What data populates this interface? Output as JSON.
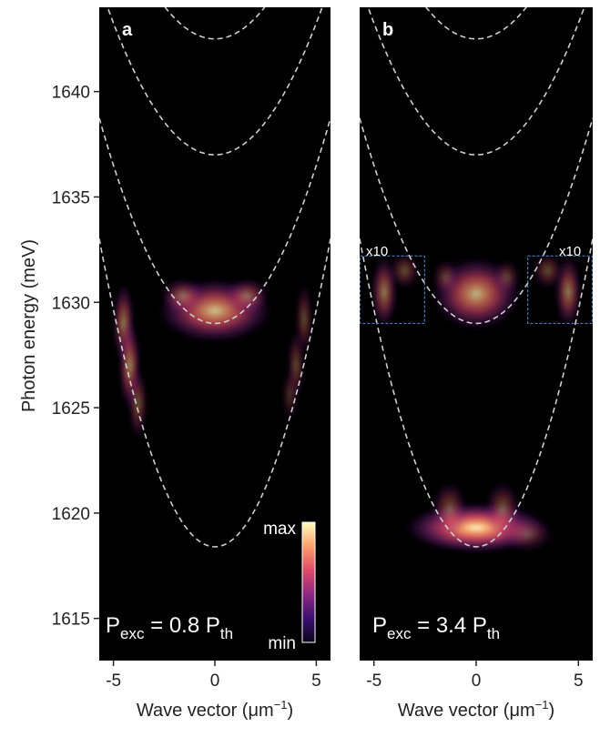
{
  "chart_data": {
    "type": "heatmap",
    "ylabel": "Photon energy (meV)",
    "ylim": [
      1613,
      1644
    ],
    "xlim": [
      -5.7,
      5.7
    ],
    "yticks": [
      1615,
      1620,
      1625,
      1630,
      1635,
      1640
    ],
    "xticks": [
      -5,
      0,
      5
    ],
    "colormap": [
      "#0a0418",
      "#3b0f70",
      "#8c2981",
      "#de4968",
      "#fe9f6d",
      "#fcfdbf"
    ],
    "colorbar": {
      "max_label": "max",
      "min_label": "min"
    },
    "panels": [
      {
        "letter": "a",
        "xlabel": "Wave vector (μm",
        "xlabel_sup": "−1",
        "xlabel_close": ")",
        "annotation": {
          "p": "P",
          "exc": "exc",
          "eq": " = 0.8 P",
          "th": "th"
        },
        "dashed_parabolas": [
          {
            "e0": 1618.4,
            "curv": 0.45
          },
          {
            "e0": 1629.0,
            "curv": 0.3
          },
          {
            "e0": 1637.0,
            "curv": 0.25
          },
          {
            "e0": 1642.5,
            "curv": 0.25
          }
        ],
        "emission_blobs": [
          {
            "k": 0.0,
            "e": 1629.6,
            "sk": 1.3,
            "se": 0.7,
            "i": 0.8
          },
          {
            "k": -1.6,
            "e": 1630.3,
            "sk": 0.5,
            "se": 0.4,
            "i": 0.45
          },
          {
            "k": 1.6,
            "e": 1630.3,
            "sk": 0.5,
            "se": 0.4,
            "i": 0.45
          },
          {
            "k": -4.5,
            "e": 1629.0,
            "sk": 0.25,
            "se": 0.9,
            "i": 0.55
          },
          {
            "k": -4.2,
            "e": 1627.0,
            "sk": 0.25,
            "se": 1.0,
            "i": 0.6
          },
          {
            "k": -3.8,
            "e": 1625.2,
            "sk": 0.22,
            "se": 0.8,
            "i": 0.4
          },
          {
            "k": 4.4,
            "e": 1629.2,
            "sk": 0.2,
            "se": 0.8,
            "i": 0.35
          },
          {
            "k": 4.0,
            "e": 1627.0,
            "sk": 0.2,
            "se": 0.8,
            "i": 0.35
          },
          {
            "k": 3.7,
            "e": 1625.6,
            "sk": 0.18,
            "se": 0.6,
            "i": 0.25
          }
        ]
      },
      {
        "letter": "b",
        "xlabel": "Wave vector (μm",
        "xlabel_sup": "−1",
        "xlabel_close": ")",
        "annotation": {
          "p": "P",
          "exc": "exc",
          "eq": " = 3.4 P",
          "th": "th"
        },
        "x10_label": "x10",
        "dashed_parabolas": [
          {
            "e0": 1618.4,
            "curv": 0.45
          },
          {
            "e0": 1629.0,
            "curv": 0.3
          },
          {
            "e0": 1637.0,
            "curv": 0.25
          },
          {
            "e0": 1642.5,
            "curv": 0.25
          }
        ],
        "inset_boxes": [
          {
            "k_min": -5.7,
            "k_max": -2.5,
            "e_min": 1629.0,
            "e_max": 1632.2
          },
          {
            "k_min": 2.5,
            "k_max": 5.7,
            "e_min": 1629.0,
            "e_max": 1632.2
          }
        ],
        "emission_blobs": [
          {
            "k": 0.0,
            "e": 1619.3,
            "sk": 1.6,
            "se": 0.55,
            "i": 1.0
          },
          {
            "k": -1.3,
            "e": 1620.2,
            "sk": 0.4,
            "se": 0.6,
            "i": 0.4
          },
          {
            "k": 1.3,
            "e": 1620.2,
            "sk": 0.4,
            "se": 0.6,
            "i": 0.4
          },
          {
            "k": 2.5,
            "e": 1619.0,
            "sk": 0.6,
            "se": 0.4,
            "i": 0.3
          },
          {
            "k": 0.0,
            "e": 1630.4,
            "sk": 1.0,
            "se": 0.8,
            "i": 0.75
          },
          {
            "k": -1.5,
            "e": 1631.2,
            "sk": 0.3,
            "se": 0.4,
            "i": 0.3
          },
          {
            "k": 1.5,
            "e": 1631.2,
            "sk": 0.3,
            "se": 0.4,
            "i": 0.3
          },
          {
            "k": -4.5,
            "e": 1630.5,
            "sk": 0.3,
            "se": 0.8,
            "i": 0.55
          },
          {
            "k": -3.5,
            "e": 1631.5,
            "sk": 0.35,
            "se": 0.4,
            "i": 0.35
          },
          {
            "k": 4.5,
            "e": 1630.5,
            "sk": 0.3,
            "se": 0.8,
            "i": 0.55
          },
          {
            "k": 3.5,
            "e": 1631.5,
            "sk": 0.35,
            "se": 0.4,
            "i": 0.35
          }
        ]
      }
    ]
  }
}
